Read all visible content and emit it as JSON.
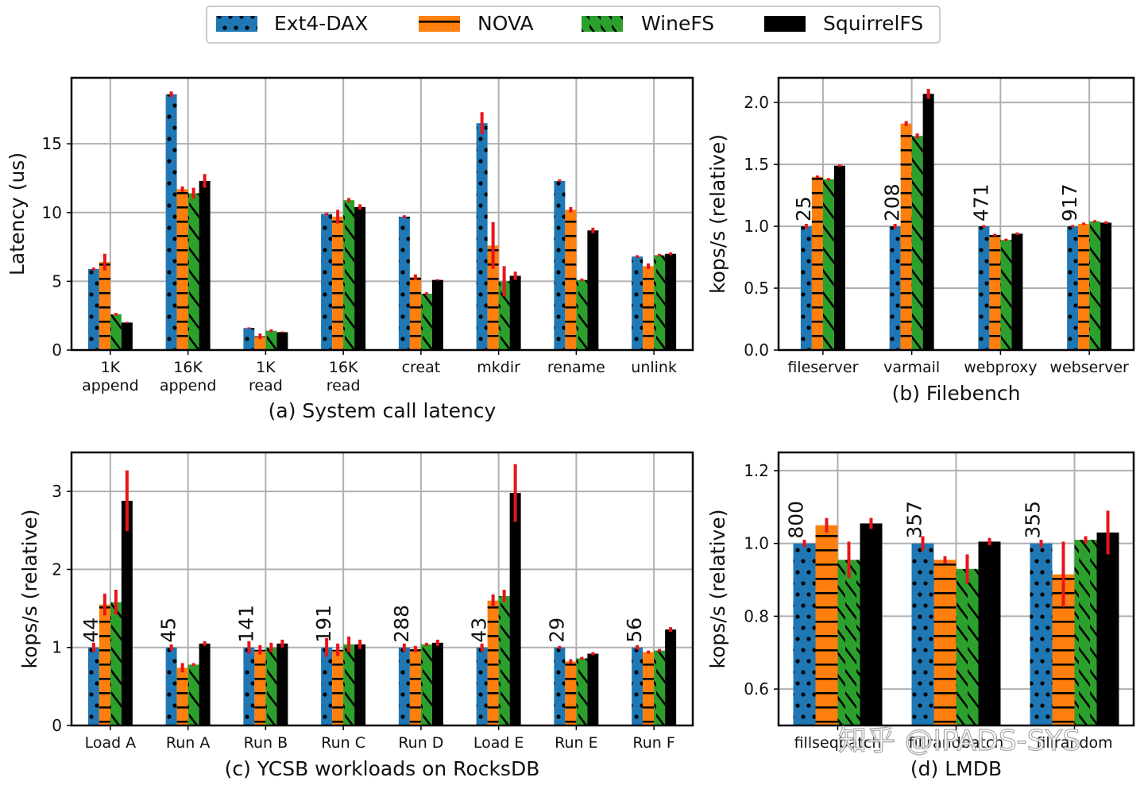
{
  "legend": {
    "items": [
      {
        "label": "Ext4-DAX",
        "color": "#1f77b4",
        "pattern": "dots"
      },
      {
        "label": "NOVA",
        "color": "#ff7f0e",
        "pattern": "hlines"
      },
      {
        "label": "WineFS",
        "color": "#2ca02c",
        "pattern": "diag"
      },
      {
        "label": "SquirrelFS",
        "color": "#000000",
        "pattern": "none"
      }
    ]
  },
  "watermark": "知乎 @IPADS-SYS",
  "chart_data": [
    {
      "id": "a",
      "type": "bar",
      "caption": "(a) System call latency",
      "ylabel": "Latency (us)",
      "ylim": [
        0,
        19.8
      ],
      "yticks": [
        0,
        5,
        10,
        15
      ],
      "grid": true,
      "categories": [
        [
          "1K",
          "append"
        ],
        [
          "16K",
          "append"
        ],
        [
          "1K",
          "read"
        ],
        [
          "16K",
          "read"
        ],
        [
          "creat"
        ],
        [
          "mkdir"
        ],
        [
          "rename"
        ],
        [
          "unlink"
        ]
      ],
      "series": [
        {
          "name": "Ext4-DAX",
          "values": [
            5.9,
            18.6,
            1.6,
            9.9,
            9.7,
            16.5,
            12.3,
            6.8
          ],
          "err": [
            0.1,
            0.2,
            0.05,
            0.1,
            0.1,
            0.8,
            0.1,
            0.1
          ]
        },
        {
          "name": "NOVA",
          "values": [
            6.4,
            11.7,
            1.0,
            9.7,
            5.3,
            7.6,
            10.2,
            6.1
          ],
          "err": [
            0.6,
            0.2,
            0.2,
            0.5,
            0.2,
            1.7,
            0.2,
            0.2
          ]
        },
        {
          "name": "WineFS",
          "values": [
            2.6,
            11.4,
            1.4,
            10.9,
            4.1,
            5.0,
            5.1,
            6.9
          ],
          "err": [
            0.1,
            0.4,
            0.1,
            0.15,
            0.1,
            1.1,
            0.1,
            0.1
          ]
        },
        {
          "name": "SquirrelFS",
          "values": [
            2.0,
            12.3,
            1.3,
            10.4,
            5.1,
            5.4,
            8.7,
            7.0
          ],
          "err": [
            0.05,
            0.5,
            0.05,
            0.2,
            0.05,
            0.3,
            0.2,
            0.1
          ]
        }
      ],
      "bar_labels": []
    },
    {
      "id": "b",
      "type": "bar",
      "caption": "(b) Filebench",
      "ylabel": "kops/s (relative)",
      "ylim": [
        0,
        2.2
      ],
      "yticks": [
        0.0,
        0.5,
        1.0,
        1.5,
        2.0
      ],
      "tick_decimals": 1,
      "grid": true,
      "categories": [
        [
          "fileserver"
        ],
        [
          "varmail"
        ],
        [
          "webproxy"
        ],
        [
          "webserver"
        ]
      ],
      "series": [
        {
          "name": "Ext4-DAX",
          "values": [
            1.0,
            1.0,
            1.0,
            1.0
          ],
          "err": [
            0.02,
            0.02,
            0.01,
            0.01
          ]
        },
        {
          "name": "NOVA",
          "values": [
            1.4,
            1.83,
            0.93,
            1.02
          ],
          "err": [
            0.01,
            0.02,
            0.01,
            0.01
          ]
        },
        {
          "name": "WineFS",
          "values": [
            1.38,
            1.73,
            0.89,
            1.04
          ],
          "err": [
            0.01,
            0.02,
            0.01,
            0.01
          ]
        },
        {
          "name": "SquirrelFS",
          "values": [
            1.49,
            2.07,
            0.94,
            1.03
          ],
          "err": [
            0.01,
            0.04,
            0.01,
            0.01
          ]
        }
      ],
      "bar_labels": [
        "25",
        "208",
        "471",
        "917"
      ]
    },
    {
      "id": "c",
      "type": "bar",
      "caption": "(c) YCSB workloads on RocksDB",
      "ylabel": "kops/s (relative)",
      "ylim": [
        0,
        3.5
      ],
      "yticks": [
        0,
        1,
        2,
        3
      ],
      "grid": true,
      "categories": [
        [
          "Load A"
        ],
        [
          "Run A"
        ],
        [
          "Run B"
        ],
        [
          "Run C"
        ],
        [
          "Run D"
        ],
        [
          "Load E"
        ],
        [
          "Run E"
        ],
        [
          "Run F"
        ]
      ],
      "series": [
        {
          "name": "Ext4-DAX",
          "values": [
            1.0,
            1.0,
            1.0,
            1.0,
            1.0,
            1.0,
            1.0,
            1.0
          ],
          "err": [
            0.06,
            0.04,
            0.08,
            0.12,
            0.05,
            0.05,
            0.02,
            0.03
          ]
        },
        {
          "name": "NOVA",
          "values": [
            1.55,
            0.74,
            0.97,
            0.97,
            0.98,
            1.6,
            0.82,
            0.94
          ],
          "err": [
            0.14,
            0.06,
            0.06,
            0.08,
            0.04,
            0.08,
            0.03,
            0.02
          ]
        },
        {
          "name": "WineFS",
          "values": [
            1.58,
            0.78,
            1.0,
            1.04,
            1.04,
            1.66,
            0.86,
            0.96
          ],
          "err": [
            0.16,
            0.02,
            0.06,
            0.1,
            0.02,
            0.08,
            0.02,
            0.02
          ]
        },
        {
          "name": "SquirrelFS",
          "values": [
            2.88,
            1.05,
            1.05,
            1.04,
            1.06,
            2.98,
            0.92,
            1.23
          ],
          "err": [
            0.39,
            0.03,
            0.05,
            0.06,
            0.04,
            0.37,
            0.02,
            0.03
          ]
        }
      ],
      "bar_labels": [
        "44",
        "45",
        "141",
        "191",
        "288",
        "43",
        "29",
        "56"
      ]
    },
    {
      "id": "d",
      "type": "bar",
      "caption": "(d) LMDB",
      "ylabel": "kops/s (relative)",
      "ylim": [
        0.5,
        1.25
      ],
      "yticks": [
        0.6,
        0.8,
        1.0,
        1.2
      ],
      "tick_decimals": 1,
      "grid": true,
      "categories": [
        [
          "fillseqbatch"
        ],
        [
          "fillrandbatch"
        ],
        [
          "fillrandom"
        ]
      ],
      "series": [
        {
          "name": "Ext4-DAX",
          "values": [
            1.0,
            1.0,
            1.0
          ],
          "err": [
            0.01,
            0.02,
            0.01
          ]
        },
        {
          "name": "NOVA",
          "values": [
            1.05,
            0.955,
            0.915
          ],
          "err": [
            0.02,
            0.01,
            0.09
          ]
        },
        {
          "name": "WineFS",
          "values": [
            0.955,
            0.93,
            1.01
          ],
          "err": [
            0.05,
            0.04,
            0.01
          ]
        },
        {
          "name": "SquirrelFS",
          "values": [
            1.055,
            1.005,
            1.03
          ],
          "err": [
            0.015,
            0.01,
            0.06
          ]
        }
      ],
      "bar_labels": [
        "800",
        "357",
        "355"
      ]
    }
  ]
}
